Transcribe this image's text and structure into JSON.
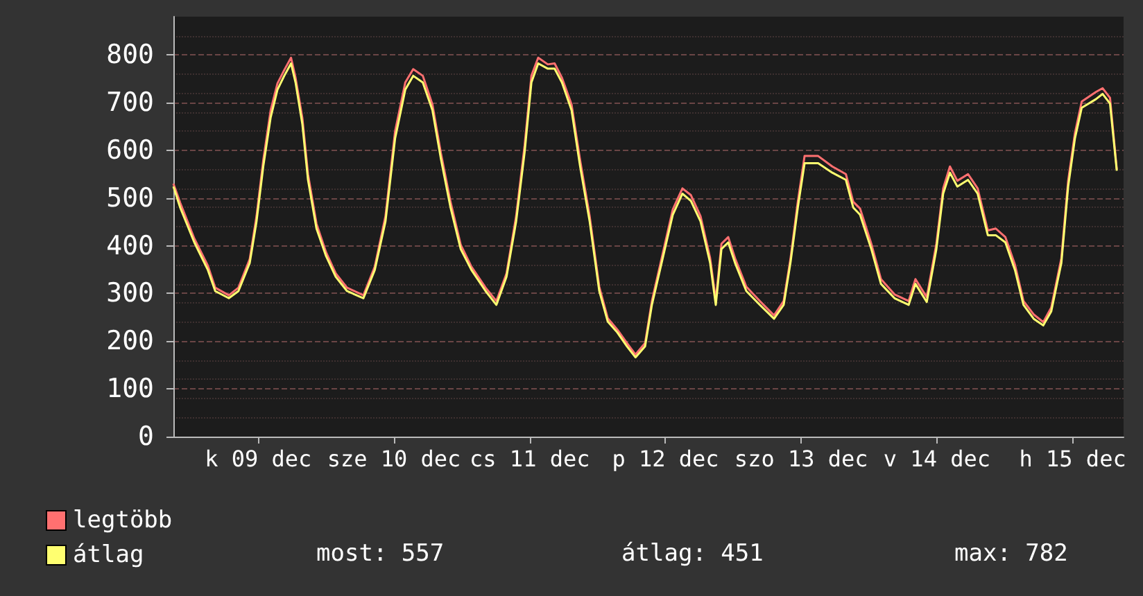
{
  "chart_data": {
    "type": "line",
    "x": [
      "--12-08T21:00",
      "--12-08T22:12",
      "--12-09T00:42",
      "--12-09T03:06",
      "--12-09T04:24",
      "--12-09T06:48",
      "--12-09T08:30",
      "--12-09T10:30",
      "--12-09T11:42",
      "--12-09T12:54",
      "--12-09T14:12",
      "--12-09T15:24",
      "--12-09T16:36",
      "--12-09T17:48",
      "--12-09T18:36",
      "--12-09T19:48",
      "--12-09T20:48",
      "--12-09T22:18",
      "--12-10T00:00",
      "--12-10T01:42",
      "--12-10T03:42",
      "--12-10T06:36",
      "--12-10T08:36",
      "--12-10T10:30",
      "--12-10T12:12",
      "--12-10T14:00",
      "--12-10T15:24",
      "--12-10T17:06",
      "--12-10T18:48",
      "--12-10T20:18",
      "--12-10T22:00",
      "--12-10T23:48",
      "--12-11T01:42",
      "--12-11T04:12",
      "--12-11T06:06",
      "--12-11T07:54",
      "--12-11T09:36",
      "--12-11T11:06",
      "--12-11T12:18",
      "--12-11T13:30",
      "--12-11T15:12",
      "--12-11T16:24",
      "--12-11T17:42",
      "--12-11T19:24",
      "--12-11T20:54",
      "--12-11T22:36",
      "--12-12T00:18",
      "--12-12T01:48",
      "--12-12T03:30",
      "--12-12T05:12",
      "--12-12T06:42",
      "--12-12T08:24",
      "--12-12T09:36",
      "--12-12T11:36",
      "--12-12T13:18",
      "--12-12T15:00",
      "--12-12T16:30",
      "--12-12T18:12",
      "--12-12T19:54",
      "--12-12T20:54",
      "--12-12T21:54",
      "--12-12T23:06",
      "--12-13T00:18",
      "--12-13T02:18",
      "--12-13T04:42",
      "--12-13T07:12",
      "--12-13T08:54",
      "--12-13T10:06",
      "--12-13T11:24",
      "--12-13T12:36",
      "--12-13T15:00",
      "--12-13T17:30",
      "--12-13T19:54",
      "--12-13T21:12",
      "--12-13T22:24",
      "--12-14T00:24",
      "--12-14T02:06",
      "--12-14T04:30",
      "--12-14T07:00",
      "--12-14T08:12",
      "--12-14T10:12",
      "--12-14T11:54",
      "--12-14T13:06",
      "--12-14T14:18",
      "--12-14T15:36",
      "--12-14T17:30",
      "--12-14T19:12",
      "--12-14T21:00",
      "--12-14T22:24",
      "--12-15T00:06",
      "--12-15T01:48",
      "--12-15T03:18",
      "--12-15T05:06",
      "--12-15T06:48",
      "--12-15T08:12",
      "--12-15T10:00",
      "--12-15T11:12",
      "--12-15T12:24",
      "--12-15T13:36",
      "--12-15T16:06",
      "--12-15T17:18",
      "--12-15T18:36",
      "--12-15T19:48"
    ],
    "series": [
      {
        "name": "legtöbb",
        "color": "#ff7070",
        "values": [
          530,
          490,
          415,
          358,
          312,
          296,
          312,
          372,
          462,
          580,
          684,
          740,
          768,
          794,
          752,
          668,
          550,
          446,
          386,
          342,
          312,
          296,
          356,
          462,
          640,
          742,
          770,
          756,
          696,
          594,
          492,
          402,
          356,
          312,
          284,
          342,
          462,
          610,
          756,
          794,
          780,
          782,
          752,
          696,
          580,
          462,
          314,
          248,
          224,
          196,
          172,
          196,
          284,
          388,
          476,
          520,
          506,
          462,
          374,
          286,
          404,
          418,
          374,
          314,
          284,
          254,
          284,
          372,
          492,
          588,
          588,
          566,
          550,
          492,
          478,
          404,
          330,
          298,
          284,
          330,
          292,
          404,
          520,
          566,
          536,
          550,
          520,
          432,
          436,
          418,
          360,
          284,
          256,
          240,
          270,
          374,
          536,
          636,
          702,
          722,
          730,
          710,
          560
        ]
      },
      {
        "name": "átlag",
        "color": "#ffff70",
        "values": [
          524,
          480,
          407,
          349,
          305,
          290,
          305,
          364,
          451,
          567,
          669,
          727,
          756,
          782,
          742,
          655,
          538,
          436,
          378,
          335,
          305,
          290,
          349,
          451,
          625,
          727,
          756,
          742,
          684,
          582,
          480,
          393,
          349,
          305,
          276,
          335,
          451,
          596,
          742,
          782,
          771,
          771,
          742,
          684,
          567,
          451,
          305,
          241,
          218,
          189,
          166,
          189,
          276,
          378,
          465,
          509,
          494,
          451,
          364,
          276,
          393,
          407,
          364,
          305,
          276,
          247,
          276,
          364,
          480,
          573,
          573,
          553,
          538,
          480,
          465,
          393,
          320,
          290,
          276,
          320,
          282,
          393,
          509,
          553,
          524,
          538,
          509,
          422,
          422,
          407,
          349,
          276,
          247,
          233,
          262,
          364,
          524,
          625,
          689,
          707,
          718,
          698,
          557
        ]
      }
    ],
    "xlim": [
      "--12-08T21:00",
      "--12-15T21:00"
    ],
    "xticks": [
      {
        "value": "--12-09T12:00",
        "label": "k 09 dec"
      },
      {
        "value": "--12-10T12:00",
        "label": "sze 10 dec"
      },
      {
        "value": "--12-11T12:00",
        "label": "cs 11 dec"
      },
      {
        "value": "--12-12T12:00",
        "label": "p 12 dec"
      },
      {
        "value": "--12-13T12:00",
        "label": "szo 13 dec"
      },
      {
        "value": "--12-14T12:00",
        "label": "v 14 dec"
      },
      {
        "value": "--12-15T12:00",
        "label": "h 15 dec"
      }
    ],
    "ylim": [
      0,
      880
    ],
    "yticks": [
      0,
      100,
      200,
      300,
      400,
      500,
      600,
      700,
      800
    ],
    "grid": "y",
    "legend": "bottom left",
    "marker": "none",
    "line_style": "solid",
    "annotations": [
      "most: 557",
      "átlag: 451",
      "max: 782"
    ]
  }
}
